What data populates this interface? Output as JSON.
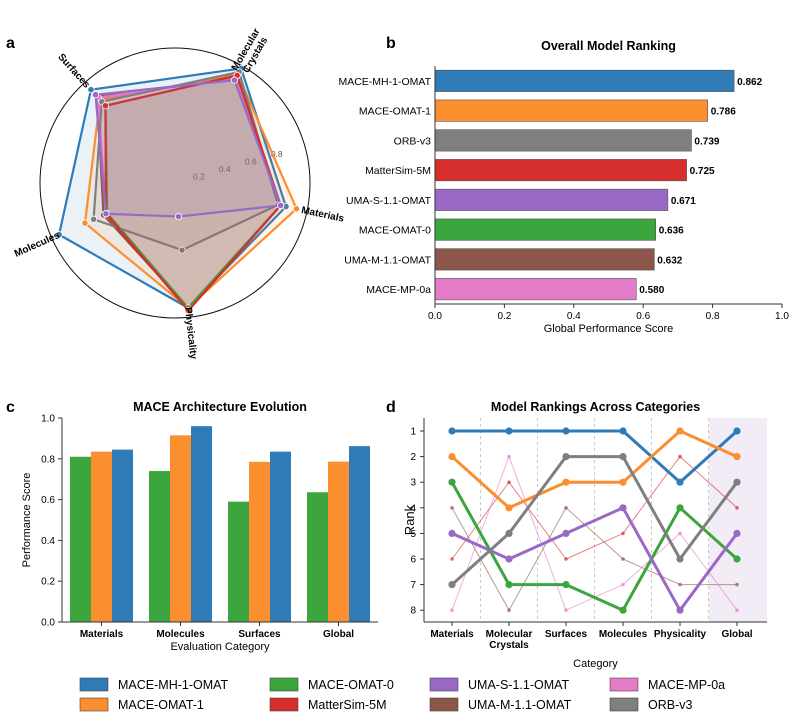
{
  "models": [
    {
      "name": "MACE-MH-1-OMAT",
      "color": "#2f7bb8"
    },
    {
      "name": "MACE-OMAT-1",
      "color": "#fb8e2e"
    },
    {
      "name": "MACE-OMAT-0",
      "color": "#3da53d"
    },
    {
      "name": "MatterSim-5M",
      "color": "#d62d2d"
    },
    {
      "name": "UMA-S-1.1-OMAT",
      "color": "#9a69c6"
    },
    {
      "name": "UMA-M-1.1-OMAT",
      "color": "#8c564b"
    },
    {
      "name": "MACE-MP-0a",
      "color": "#e57cc8"
    },
    {
      "name": "ORB-v3",
      "color": "#7f7f7f"
    }
  ],
  "chart_data": [
    {
      "panel": "a",
      "type": "radar",
      "title": "",
      "axes": [
        "Materials",
        "Molecular Crystals",
        "Surfaces",
        "Molecules",
        "Physicality"
      ],
      "axis_labels": [
        [
          "Materials"
        ],
        [
          "Molecular",
          "Crystals"
        ],
        [
          "Surfaces"
        ],
        [
          "Molecules"
        ],
        [
          "Physicality"
        ]
      ],
      "rticks": [
        "0.2",
        "0.4",
        "0.6",
        "0.8"
      ],
      "rmax": 1.0,
      "series": [
        {
          "name": "MACE-MH-1-OMAT",
          "values": [
            0.84,
            0.98,
            0.93,
            0.94,
            0.93
          ]
        },
        {
          "name": "MACE-OMAT-1",
          "values": [
            0.92,
            0.93,
            0.83,
            0.73,
            0.93
          ]
        },
        {
          "name": "MatterSim-5M",
          "values": [
            0.8,
            0.92,
            0.77,
            0.56,
            0.95
          ]
        },
        {
          "name": "UMA-S-1.1-OMAT",
          "values": [
            0.8,
            0.88,
            0.88,
            0.56,
            0.25
          ]
        },
        {
          "name": "UMA-M-1.1-OMAT",
          "values": [
            0.8,
            0.89,
            0.86,
            0.58,
            0.93
          ]
        },
        {
          "name": "MACE-OMAT-0",
          "values": [
            0.8,
            0.92,
            0.77,
            0.55,
            0.93
          ]
        },
        {
          "name": "MACE-MP-0a",
          "values": [
            0.8,
            0.9,
            0.85,
            0.56,
            0.93
          ]
        },
        {
          "name": "ORB-v3",
          "values": [
            0.78,
            0.95,
            0.81,
            0.66,
            0.5
          ]
        }
      ]
    },
    {
      "panel": "b",
      "type": "bar",
      "orientation": "horizontal",
      "title": "Overall Model Ranking",
      "xlabel": "Global Performance Score",
      "ylabel": "",
      "xlim": [
        0,
        1.0
      ],
      "xticks": [
        "0.0",
        "0.2",
        "0.4",
        "0.6",
        "0.8",
        "1.0"
      ],
      "categories": [
        "MACE-MH-1-OMAT",
        "MACE-OMAT-1",
        "ORB-v3",
        "MatterSim-5M",
        "UMA-S-1.1-OMAT",
        "MACE-OMAT-0",
        "UMA-M-1.1-OMAT",
        "MACE-MP-0a"
      ],
      "values": [
        0.862,
        0.786,
        0.739,
        0.725,
        0.671,
        0.636,
        0.632,
        0.58
      ],
      "value_labels": [
        "0.862",
        "0.786",
        "0.739",
        "0.725",
        "0.671",
        "0.636",
        "0.632",
        "0.580"
      ]
    },
    {
      "panel": "c",
      "type": "bar",
      "title": "MACE Architecture Evolution",
      "xlabel": "Evaluation Category",
      "ylabel": "Performance Score",
      "ylim": [
        0,
        1.0
      ],
      "yticks": [
        "0.0",
        "0.2",
        "0.4",
        "0.6",
        "0.8",
        "1.0"
      ],
      "categories": [
        "Materials",
        "Molecules",
        "Surfaces",
        "Global"
      ],
      "series": [
        {
          "name": "MACE-OMAT-0",
          "values": [
            0.81,
            0.74,
            0.59,
            0.636
          ]
        },
        {
          "name": "MACE-OMAT-1",
          "values": [
            0.835,
            0.915,
            0.785,
            0.786
          ]
        },
        {
          "name": "MACE-MH-1-OMAT",
          "values": [
            0.845,
            0.96,
            0.835,
            0.862
          ]
        }
      ]
    },
    {
      "panel": "d",
      "type": "line",
      "title": "Model Rankings Across Categories",
      "xlabel": "Category",
      "ylabel": "Rank",
      "categories": [
        "Materials",
        "Molecular Crystals",
        "Surfaces",
        "Molecules",
        "Physicality",
        "Global"
      ],
      "category_labels": [
        [
          "Materials"
        ],
        [
          "Molecular",
          "Crystals"
        ],
        [
          "Surfaces"
        ],
        [
          "Molecules"
        ],
        [
          "Physicality"
        ],
        [
          "Global"
        ]
      ],
      "yticks": [
        "1",
        "2",
        "3",
        "4",
        "5",
        "6",
        "7",
        "8"
      ],
      "ylim": [
        8.5,
        0.5
      ],
      "highlighted_series": [
        "MACE-MH-1-OMAT",
        "MACE-OMAT-1",
        "MACE-OMAT-0",
        "UMA-S-1.1-OMAT",
        "ORB-v3"
      ],
      "series": [
        {
          "name": "MACE-MH-1-OMAT",
          "values": [
            1,
            1,
            1,
            1,
            3,
            1
          ]
        },
        {
          "name": "MACE-OMAT-1",
          "values": [
            2,
            4,
            3,
            3,
            1,
            2
          ]
        },
        {
          "name": "MACE-OMAT-0",
          "values": [
            3,
            7,
            7,
            8,
            4,
            6
          ]
        },
        {
          "name": "UMA-S-1.1-OMAT",
          "values": [
            5,
            6,
            5,
            4,
            8,
            5
          ]
        },
        {
          "name": "ORB-v3",
          "values": [
            7,
            5,
            2,
            2,
            6,
            3
          ]
        },
        {
          "name": "MatterSim-5M",
          "values": [
            6,
            3,
            6,
            5,
            2,
            4
          ]
        },
        {
          "name": "UMA-M-1.1-OMAT",
          "values": [
            4,
            8,
            4,
            6,
            7,
            7
          ]
        },
        {
          "name": "MACE-MP-0a",
          "values": [
            8,
            2,
            8,
            7,
            5,
            8
          ]
        }
      ]
    }
  ],
  "panel_letters": {
    "a": "a",
    "b": "b",
    "c": "c",
    "d": "d"
  },
  "legend": {
    "placement": "bottom"
  }
}
